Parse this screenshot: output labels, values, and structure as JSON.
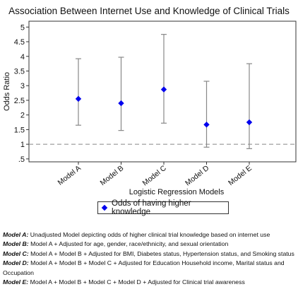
{
  "chart_data": {
    "type": "scatter",
    "title": "Association Between Internet Use and Knowledge of Clinical Trials",
    "xlabel": "Logistic Regression Models",
    "ylabel": "Odds Ratio",
    "categories": [
      "Model A",
      "Model B",
      "Model C",
      "Model D",
      "Model E"
    ],
    "ylim": [
      0.4,
      5.2
    ],
    "yticks": [
      ".5",
      "1",
      "1.5",
      "2",
      "2.5",
      "3",
      "3.5",
      "4",
      "4.5",
      "5"
    ],
    "ytick_values": [
      0.5,
      1,
      1.5,
      2,
      2.5,
      3,
      3.5,
      4,
      4.5,
      5
    ],
    "reference_line": 1,
    "series": [
      {
        "name": "Odds of having higher knowledge",
        "values": [
          2.55,
          2.4,
          2.87,
          1.67,
          1.75
        ],
        "ci_lower": [
          1.65,
          1.47,
          1.72,
          0.9,
          0.85
        ],
        "ci_upper": [
          3.92,
          3.97,
          4.75,
          3.15,
          3.75
        ]
      }
    ],
    "legend_position": "bottom",
    "grid": false,
    "colors": {
      "marker": "#0000ee",
      "errorbar": "#888888",
      "refline": "#888888"
    }
  },
  "notes": [
    {
      "label": "Model A:",
      "text": " Unadjusted Model depicting odds of higher clinical trial knowledge based on internet use"
    },
    {
      "label": "Model B:",
      "text": " Model A + Adjusted for age, gender, race/ethnicity, and sexual orientation"
    },
    {
      "label": "Model C:",
      "text": " Model A + Model B + Adjusted for BMI, Diabetes status, Hypertension status, and Smoking status"
    },
    {
      "label": "Model D:",
      "text": " Model A + Model B + Model C + Adjusted for Education Household income, Marital status and Occupation"
    },
    {
      "label": "Model E:",
      "text": " Model A + Model B + Model C + Model D + Adjusted for Clinical trial awareness"
    }
  ]
}
